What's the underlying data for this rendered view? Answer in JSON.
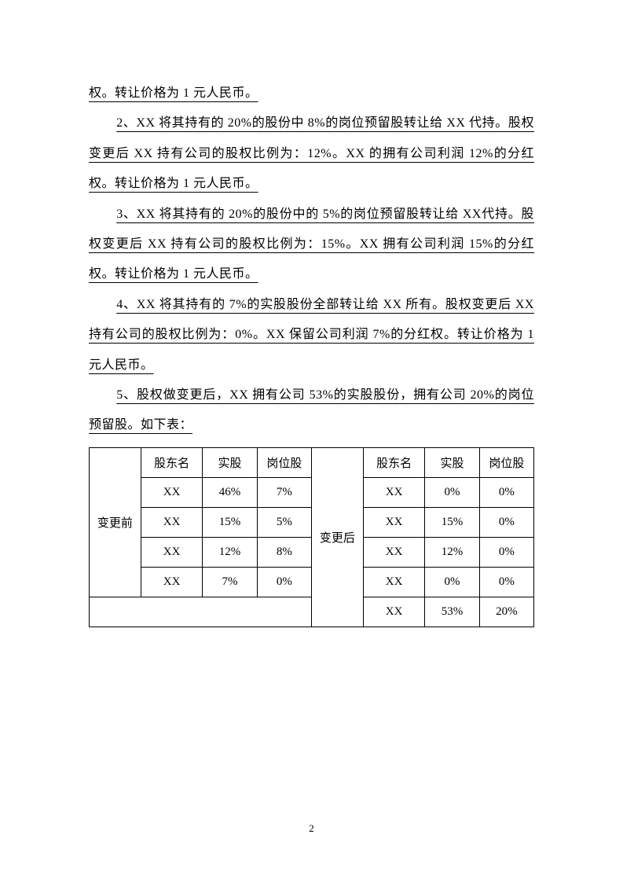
{
  "paragraphs": {
    "p0": "权。转让价格为 1 元人民币。",
    "p1": "2、XX 将其持有的 20%的股份中 8%的岗位预留股转让给 XX 代持。股权变更后 XX 持有公司的股权比例为：12%。XX 的拥有公司利润 12%的分红权。转让价格为 1 元人民币。",
    "p2": "3、XX 将其持有的 20%的股份中的 5%的岗位预留股转让给 XX代持。股权变更后 XX 持有公司的股权比例为：15%。XX 拥有公司利润 15%的分红权。转让价格为 1 元人民币。",
    "p3": "4、XX 将其持有的 7%的实股股份全部转让给 XX 所有。股权变更后 XX 持有公司的股权比例为：0%。XX 保留公司利润 7%的分红权。转让价格为 1 元人民币。",
    "p4": "5、股权做变更后，XX 拥有公司 53%的实股股份，拥有公司 20%的岗位预留股。如下表："
  },
  "table": {
    "left_label": "变更前",
    "right_label": "变更后",
    "headers": {
      "name": "股东名",
      "real": "实股",
      "post": "岗位股"
    },
    "before": [
      {
        "name": "XX",
        "real": "46%",
        "post": "7%"
      },
      {
        "name": "XX",
        "real": "15%",
        "post": "5%"
      },
      {
        "name": "XX",
        "real": "12%",
        "post": "8%"
      },
      {
        "name": "XX",
        "real": "7%",
        "post": "0%"
      }
    ],
    "after": [
      {
        "name": "XX",
        "real": "0%",
        "post": "0%"
      },
      {
        "name": "XX",
        "real": "15%",
        "post": "0%"
      },
      {
        "name": "XX",
        "real": "12%",
        "post": "0%"
      },
      {
        "name": "XX",
        "real": "0%",
        "post": "0%"
      },
      {
        "name": "XX",
        "real": "53%",
        "post": "20%"
      }
    ]
  },
  "page_number": "2"
}
